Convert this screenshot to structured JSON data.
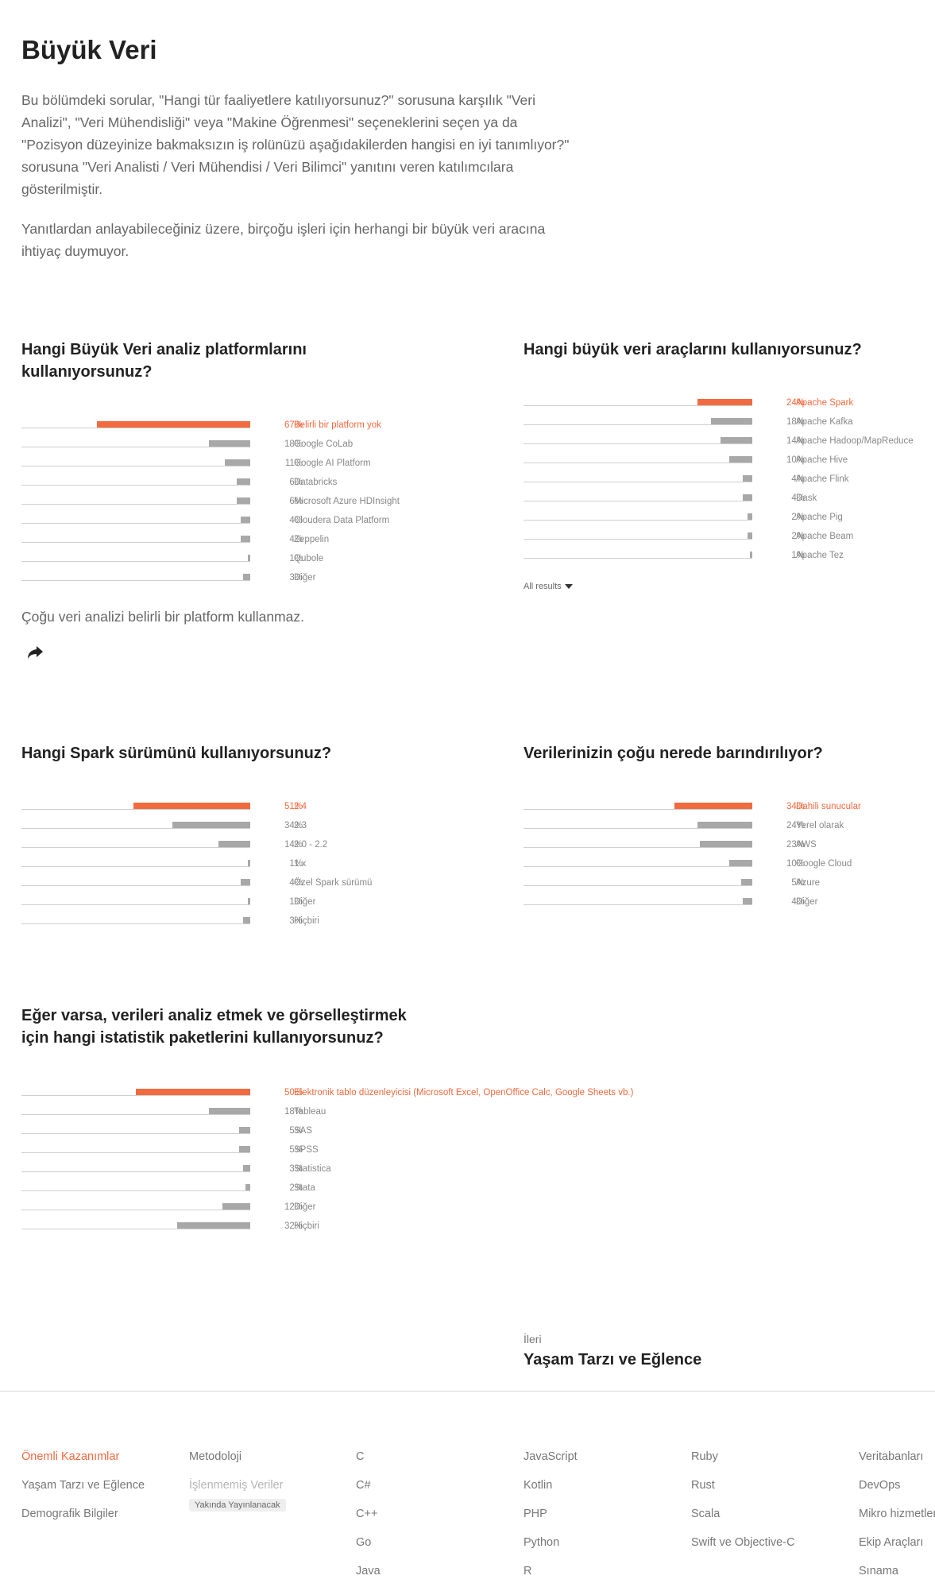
{
  "page": {
    "title": "Büyük Veri",
    "intro_p1": "Bu bölümdeki sorular, \"Hangi tür faaliyetlere katılıyorsunuz?\" sorusuna karşılık \"Veri Analizi\", \"Veri Mühendisliği\" veya \"Makine Öğrenmesi\" seçeneklerini seçen ya da \"Pozisyon düzeyinize bakmaksızın iş rolünüzü aşağıdakilerden hangisi en iyi tanımlıyor?\" sorusuna \"Veri Analisti / Veri Mühendisi / Veri Bilimci\" yanıtını veren katılımcılara gösterilmiştir.",
    "intro_p2": "Yanıtlardan anlayabileceğiniz üzere, birçoğu işleri için herhangi bir büyük veri aracına ihtiyaç duymuyor."
  },
  "chart_data": [
    {
      "id": "platforms",
      "type": "bar",
      "title": "Hangi Büyük Veri analiz platformlarını kullanıyorsunuz?",
      "categories": [
        "Belirli bir platform yok",
        "Google CoLab",
        "Google AI Platform",
        "Databricks",
        "Microsoft Azure HDInsight",
        "Cloudera Data Platform",
        "Zeppelin",
        "Qubole",
        "Diğer"
      ],
      "values": [
        67,
        18,
        11,
        6,
        6,
        4,
        4,
        1,
        3
      ],
      "labels": [
        "67%",
        "18%",
        "11%",
        "6%",
        "6%",
        "4%",
        "4%",
        "1%",
        "3%"
      ],
      "highlight": 0,
      "note": "Çoğu veri analizi belirli bir platform kullanmaz."
    },
    {
      "id": "tools",
      "type": "bar",
      "title": "Hangi büyük veri araçlarını kullanıyorsunuz?",
      "categories": [
        "Apache Spark",
        "Apache Kafka",
        "Apache Hadoop/MapReduce",
        "Apache Hive",
        "Apache Flink",
        "Dask",
        "Apache Pig",
        "Apache Beam",
        "Apache Tez"
      ],
      "values": [
        24,
        18,
        14,
        10,
        4,
        4,
        2,
        2,
        1
      ],
      "labels": [
        "24%",
        "18%",
        "14%",
        "10%",
        "4%",
        "4%",
        "2%",
        "2%",
        "1%"
      ],
      "highlight": 0,
      "all_results": "All results"
    },
    {
      "id": "spark",
      "type": "bar",
      "title": "Hangi Spark sürümünü kullanıyorsunuz?",
      "categories": [
        "2.4",
        "2.3",
        "2.0 - 2.2",
        "1.x",
        "Özel Spark sürümü",
        "Diğer",
        "Hiçbiri"
      ],
      "values": [
        51,
        34,
        14,
        1,
        4,
        1,
        3
      ],
      "labels": [
        "51%",
        "34%",
        "14%",
        "1%",
        "4%",
        "1%",
        "3%"
      ],
      "highlight": 0
    },
    {
      "id": "hosting",
      "type": "bar",
      "title": "Verilerinizin çoğu nerede barındırılıyor?",
      "categories": [
        "Dahili sunucular",
        "Yerel olarak",
        "AWS",
        "Google Cloud",
        "Azure",
        "Diğer"
      ],
      "values": [
        34,
        24,
        23,
        10,
        5,
        4
      ],
      "labels": [
        "34%",
        "24%",
        "23%",
        "10%",
        "5%",
        "4%"
      ],
      "highlight": 0
    },
    {
      "id": "stats",
      "type": "bar",
      "title": "Eğer varsa, verileri analiz etmek ve görselleştirmek için hangi istatistik paketlerini kullanıyorsunuz?",
      "categories": [
        "Elektronik tablo düzenleyicisi (Microsoft Excel, OpenOffice Calc, Google Sheets vb.)",
        "Tableau",
        "SAS",
        "SPSS",
        "Statistica",
        "Stata",
        "Diğer",
        "Hiçbiri"
      ],
      "values": [
        50,
        18,
        5,
        5,
        3,
        2,
        12,
        32
      ],
      "labels": [
        "50%",
        "18%",
        "5%",
        "5%",
        "3%",
        "2%",
        "12%",
        "32%"
      ],
      "highlight": 0
    }
  ],
  "next": {
    "label": "İleri",
    "title": "Yaşam Tarzı ve Eğlence"
  },
  "footer": {
    "col1": [
      "Önemli Kazanımlar",
      "Yaşam Tarzı ve Eğlence",
      "Demografik Bilgiler"
    ],
    "col2": [
      "Metodoloji",
      "İşlenmemiş Veriler"
    ],
    "col2_badge": "Yakında Yayınlanacak",
    "col3": [
      "C",
      "C#",
      "C++",
      "Go",
      "Java"
    ],
    "col4": [
      "JavaScript",
      "Kotlin",
      "PHP",
      "Python",
      "R"
    ],
    "col5": [
      "Ruby",
      "Rust",
      "Scala",
      "Swift ve Objective-C"
    ],
    "col6": [
      "Veritabanları",
      "DevOps",
      "Mikro hizmetler",
      "Ekip Araçları",
      "Sınama"
    ]
  },
  "colors": {
    "accent": "#f26a3f",
    "bar": "#a8a8a8"
  },
  "icons": {
    "share": "share-arrow-icon",
    "dropdown": "caret-down-icon"
  }
}
